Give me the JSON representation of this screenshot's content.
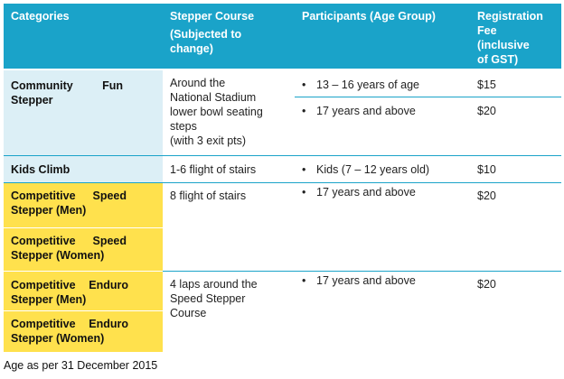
{
  "headers": {
    "categories": "Categories",
    "course_line1": "Stepper Course",
    "course_line2": "(Subjected to",
    "course_line3": "change)",
    "participants": "Participants (Age Group)",
    "fee_line1": "Registration",
    "fee_line2": "Fee",
    "fee_line3": "(inclusive",
    "fee_line4": "of GST)"
  },
  "rows": {
    "community": {
      "cat_w1": "Community",
      "cat_w2": "Fun",
      "cat_w3": "Stepper",
      "course_l1": "Around the",
      "course_l2": "National Stadium",
      "course_l3": "lower bowl seating",
      "course_l4": "steps",
      "course_l5": "(with 3 exit pts)",
      "p1": "13 – 16 years of age",
      "fee1": "$15",
      "p2": "17 years and above",
      "fee2": "$20"
    },
    "kids": {
      "cat": "Kids Climb",
      "course": "1-6 flight of stairs",
      "participants": "Kids (7 – 12 years old)",
      "fee": "$10"
    },
    "speed": {
      "men_w1": "Competitive",
      "men_w2": "Speed",
      "men_w3": "Stepper (Men)",
      "women_w1": "Competitive",
      "women_w2": "Speed",
      "women_w3": "Stepper (Women)",
      "course": "8 flight of stairs",
      "participants": "17 years and above",
      "fee": "$20"
    },
    "enduro": {
      "men_w1": "Competitive",
      "men_w2": "Enduro",
      "men_w3": "Stepper (Men)",
      "women_w1": "Competitive",
      "women_w2": "Enduro",
      "women_w3": "Stepper (Women)",
      "course_l1": "4 laps around the",
      "course_l2": "Speed Stepper",
      "course_l3": "Course",
      "participants": "17 years and above",
      "fee": "$20"
    }
  },
  "bullet_glyph": "•",
  "footnote": "Age as per 31 December 2015",
  "colors": {
    "header_bg": "#1aa3c9",
    "community_bg": "#dcefF6",
    "competitive_bg": "#ffe14d"
  }
}
